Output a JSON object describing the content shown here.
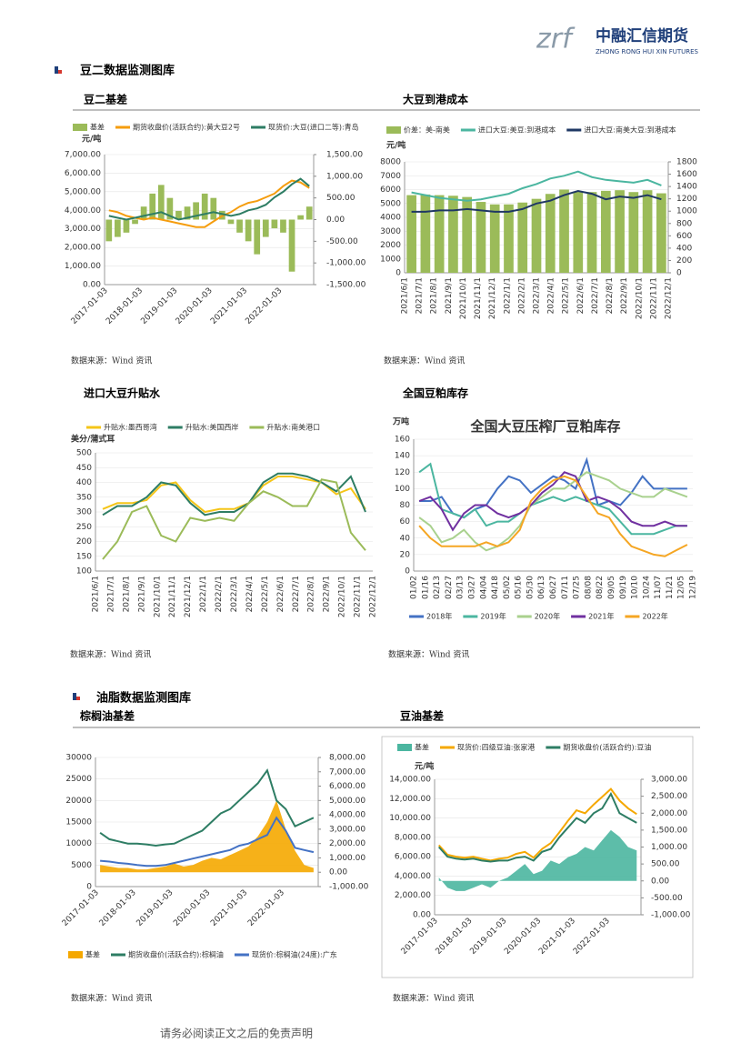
{
  "logo": {
    "mark": "zrf",
    "name": "中融汇信期货",
    "sub": "ZHONG RONG HUI XIN FUTURES"
  },
  "sections": [
    {
      "title": "豆二数据监测图库"
    },
    {
      "title": "油脂数据监测图库"
    }
  ],
  "charts": [
    {
      "type": "line",
      "caption": "豆二基差",
      "unit": "元/吨",
      "legend": "top",
      "source": "数据来源：Wind 资讯",
      "xlabels": [
        "2017-01-03",
        "2018-01-03",
        "2019-01-03",
        "2020-01-03",
        "2021-01-03",
        "2022-01-03"
      ],
      "ylim": [
        0,
        7000
      ],
      "yticks": [
        {
          "value": 0,
          "label": "0.00"
        },
        {
          "value": 1000,
          "label": "1,000.00"
        },
        {
          "value": 2000,
          "label": "2,000.00"
        },
        {
          "value": 3000,
          "label": "3,000.00"
        },
        {
          "value": 4000,
          "label": "4,000.00"
        },
        {
          "value": 5000,
          "label": "5,000.00"
        },
        {
          "value": 6000,
          "label": "6,000.00"
        },
        {
          "value": 7000,
          "label": "7,000.00"
        }
      ],
      "y2lim": [
        -1500,
        1500
      ],
      "y2ticks": [
        {
          "value": -1500,
          "label": "-1,500.00"
        },
        {
          "value": -1000,
          "label": "-1,000.00"
        },
        {
          "value": -500,
          "label": "-500.00"
        },
        {
          "value": 0,
          "label": "0.00"
        },
        {
          "value": 500,
          "label": "500.00"
        },
        {
          "value": 1000,
          "label": "1,000.00"
        },
        {
          "value": 1500,
          "label": "1,500.00"
        }
      ],
      "series": [
        {
          "name": "基差",
          "color": "#9bbb59",
          "kind": "bar",
          "axis": "y2",
          "values": [
            -500,
            -400,
            -300,
            -100,
            300,
            600,
            800,
            500,
            200,
            300,
            400,
            600,
            500,
            200,
            -100,
            -300,
            -500,
            -800,
            -400,
            -200,
            -300,
            -1200,
            100,
            300
          ]
        },
        {
          "name": "期货收盘价(活跃合约):黄大豆2号",
          "color": "#f59d0e",
          "kind": "line",
          "values": [
            4000,
            3900,
            3700,
            3600,
            3500,
            3600,
            3500,
            3400,
            3300,
            3200,
            3100,
            3100,
            3400,
            3700,
            3900,
            4200,
            4400,
            4500,
            4700,
            4900,
            5300,
            5600,
            5500,
            5200
          ]
        },
        {
          "name": "现货价:大豆(进口二等):青岛",
          "color": "#2e7d64",
          "kind": "line",
          "values": [
            3700,
            3600,
            3500,
            3600,
            3700,
            3800,
            3900,
            3700,
            3500,
            3600,
            3700,
            3800,
            3900,
            3800,
            3700,
            3800,
            4000,
            4100,
            4300,
            4700,
            5000,
            5400,
            5700,
            5300
          ]
        }
      ]
    },
    {
      "type": "line",
      "caption": "大豆到港成本",
      "unit": "元/吨",
      "legend": "top",
      "source": "数据来源：Wind 资讯",
      "xlabels": [
        "2021/6/1",
        "2021/7/1",
        "2021/8/1",
        "2021/9/1",
        "2021/10/1",
        "2021/11/1",
        "2021/12/1",
        "2022/1/1",
        "2022/2/1",
        "2022/3/1",
        "2022/4/1",
        "2022/5/1",
        "2022/6/1",
        "2022/7/1",
        "2022/8/1",
        "2022/9/1",
        "2022/10/1",
        "2022/11/1",
        "2022/12/1"
      ],
      "ylim": [
        0,
        8000
      ],
      "yticks": [
        0,
        1000,
        2000,
        3000,
        4000,
        5000,
        6000,
        7000,
        8000
      ],
      "y2lim": [
        0,
        1800
      ],
      "y2ticks": [
        0,
        200,
        400,
        600,
        800,
        1000,
        1200,
        1400,
        1600,
        1800
      ],
      "series": [
        {
          "name": "价差：美-南美",
          "color": "#9bbb59",
          "kind": "bar",
          "axis": "y2",
          "values": [
            1260,
            1270,
            1260,
            1250,
            1230,
            1150,
            1110,
            1110,
            1140,
            1200,
            1280,
            1350,
            1320,
            1310,
            1330,
            1340,
            1310,
            1340,
            1290
          ]
        },
        {
          "name": "进口大豆:美豆:到港成本",
          "color": "#4bb6a0",
          "kind": "line",
          "values": [
            5800,
            5600,
            5400,
            5300,
            5200,
            5300,
            5500,
            5700,
            6100,
            6400,
            6800,
            7000,
            7300,
            6900,
            6700,
            6600,
            6500,
            6700,
            6300
          ]
        },
        {
          "name": "进口大豆:南美大豆:到港成本",
          "color": "#1f3864",
          "kind": "line",
          "values": [
            4400,
            4400,
            4500,
            4500,
            4600,
            4500,
            4400,
            4400,
            4600,
            5000,
            5200,
            5600,
            5900,
            5700,
            5300,
            5500,
            5400,
            5600,
            5300
          ]
        }
      ]
    },
    {
      "type": "line",
      "caption": "进口大豆升贴水",
      "unit": "美分/蒲式耳",
      "legend": "top",
      "source": "数据来源：Wind 资讯",
      "xlabels": [
        "2021/6/1",
        "2021/7/1",
        "2021/8/1",
        "2021/9/1",
        "2021/10/1",
        "2021/11/1",
        "2021/12/1",
        "2022/1/1",
        "2022/2/1",
        "2022/3/1",
        "2022/4/1",
        "2022/5/1",
        "2022/6/1",
        "2022/7/1",
        "2022/8/1",
        "2022/9/1",
        "2022/10/1",
        "2022/11/1",
        "2022/12/1"
      ],
      "ylim": [
        100,
        500
      ],
      "yticks": [
        100,
        150,
        200,
        250,
        300,
        350,
        400,
        450,
        500
      ],
      "series": [
        {
          "name": "升贴水:墨西哥湾",
          "color": "#f5c518",
          "kind": "line",
          "values": [
            310,
            330,
            330,
            340,
            390,
            400,
            340,
            300,
            310,
            310,
            330,
            390,
            420,
            420,
            410,
            400,
            360,
            380,
            310
          ]
        },
        {
          "name": "升贴水:美国西岸",
          "color": "#2e7d64",
          "kind": "line",
          "values": [
            290,
            320,
            320,
            350,
            400,
            390,
            330,
            290,
            300,
            300,
            330,
            400,
            430,
            430,
            420,
            400,
            370,
            420,
            300
          ]
        },
        {
          "name": "升贴水:南美港口",
          "color": "#9bbb59",
          "kind": "line",
          "values": [
            140,
            200,
            300,
            320,
            220,
            200,
            280,
            270,
            280,
            270,
            330,
            370,
            350,
            320,
            320,
            410,
            400,
            230,
            170
          ]
        }
      ]
    },
    {
      "type": "line",
      "caption": "全国豆粕库存",
      "inner_title": "全国大豆压榨厂豆粕库存",
      "unit": "万吨",
      "legend": "bottom",
      "source": "数据来源：Wind 资讯",
      "xlabels": [
        "01/02",
        "01/16",
        "02/13",
        "02/27",
        "03/13",
        "03/27",
        "04/04",
        "04/18",
        "05/02",
        "05/16",
        "05/30",
        "06/13",
        "06/27",
        "07/11",
        "07/25",
        "08/08",
        "08/22",
        "09/05",
        "09/19",
        "10/10",
        "10/24",
        "11/07",
        "11/21",
        "12/05",
        "12/19"
      ],
      "ylim": [
        0,
        160
      ],
      "yticks": [
        0,
        20,
        40,
        60,
        80,
        100,
        120,
        140,
        160
      ],
      "series": [
        {
          "name": "2018年",
          "color": "#4472c4",
          "kind": "line",
          "values": [
            85,
            85,
            90,
            70,
            65,
            75,
            80,
            100,
            115,
            110,
            95,
            105,
            115,
            110,
            100,
            135,
            80,
            85,
            80,
            95,
            115,
            100,
            100,
            100,
            100
          ]
        },
        {
          "name": "2019年",
          "color": "#4bb6a0",
          "kind": "line",
          "values": [
            120,
            130,
            75,
            70,
            65,
            75,
            55,
            60,
            60,
            70,
            80,
            85,
            90,
            85,
            90,
            85,
            80,
            75,
            60,
            45,
            45,
            45,
            50,
            55,
            55
          ]
        },
        {
          "name": "2020年",
          "color": "#a9d18e",
          "kind": "line",
          "values": [
            65,
            55,
            35,
            40,
            50,
            35,
            25,
            30,
            40,
            55,
            80,
            90,
            100,
            100,
            110,
            120,
            115,
            110,
            100,
            95,
            90,
            90,
            100,
            95,
            90
          ]
        },
        {
          "name": "2021年",
          "color": "#7030a0",
          "kind": "line",
          "values": [
            85,
            90,
            75,
            50,
            70,
            80,
            80,
            70,
            65,
            70,
            80,
            95,
            105,
            120,
            115,
            85,
            90,
            85,
            75,
            60,
            55,
            55,
            60,
            55,
            55
          ]
        },
        {
          "name": "2022年",
          "color": "#f5a623",
          "kind": "line",
          "values": [
            55,
            40,
            30,
            30,
            30,
            30,
            35,
            30,
            35,
            50,
            85,
            100,
            110,
            115,
            110,
            90,
            70,
            65,
            45,
            30,
            25,
            20,
            18,
            25,
            32
          ]
        }
      ]
    },
    {
      "type": "line",
      "caption": "棕榈油基差",
      "legend": "bottom",
      "source": "数据来源：Wind 资讯",
      "xlabels": [
        "2017-01-03",
        "2018-01-03",
        "2019-01-03",
        "2020-01-03",
        "2021-01-03",
        "2022-01-03"
      ],
      "ylim": [
        0,
        30000
      ],
      "yticks": [
        0,
        5000,
        10000,
        15000,
        20000,
        25000,
        30000
      ],
      "y2lim": [
        -1000,
        8000
      ],
      "y2ticks": [
        {
          "value": -1000,
          "label": "-1,000.00"
        },
        {
          "value": 0,
          "label": "0.00"
        },
        {
          "value": 1000,
          "label": "1,000.00"
        },
        {
          "value": 2000,
          "label": "2,000.00"
        },
        {
          "value": 3000,
          "label": "3,000.00"
        },
        {
          "value": 4000,
          "label": "4,000.00"
        },
        {
          "value": 5000,
          "label": "5,000.00"
        },
        {
          "value": 6000,
          "label": "6,000.00"
        },
        {
          "value": 7000,
          "label": "7,000.00"
        },
        {
          "value": 8000,
          "label": "8,000.00"
        }
      ],
      "series": [
        {
          "name": "基差",
          "color": "#f5a800",
          "kind": "area",
          "axis": "y2",
          "values": [
            500,
            400,
            300,
            300,
            200,
            200,
            300,
            400,
            600,
            400,
            500,
            800,
            1000,
            900,
            1200,
            1500,
            1800,
            2500,
            3500,
            5000,
            3000,
            1500,
            500,
            300
          ]
        },
        {
          "name": "期货收盘价(活跃合约):棕榈油",
          "color": "#2e7d64",
          "kind": "line",
          "values": [
            12500,
            11000,
            10500,
            10000,
            10000,
            9800,
            9500,
            9800,
            10000,
            11000,
            12000,
            13000,
            15000,
            17000,
            18000,
            20000,
            22000,
            24000,
            27000,
            20000,
            18000,
            14000,
            15000,
            16000
          ]
        },
        {
          "name": "现货价:棕榈油(24度):广东",
          "color": "#4472c4",
          "kind": "line",
          "values": [
            6000,
            5800,
            5500,
            5300,
            5000,
            4800,
            4800,
            5000,
            5500,
            6000,
            6500,
            7000,
            7500,
            8000,
            8500,
            9500,
            10000,
            11000,
            12000,
            16000,
            13000,
            9000,
            8500,
            8000
          ]
        }
      ]
    },
    {
      "type": "line",
      "caption": "豆油基差",
      "unit": "元/吨",
      "legend": "top",
      "source": "数据来源：Wind 资讯",
      "xlabels": [
        "2017-01-03",
        "2018-01-03",
        "2019-01-03",
        "2020-01-03",
        "2021-01-03",
        "2022-01-03"
      ],
      "ylim": [
        0,
        14000
      ],
      "yticks": [
        {
          "value": 0,
          "label": "0.00"
        },
        {
          "value": 2000,
          "label": "2,000.00"
        },
        {
          "value": 4000,
          "label": "4,000.00"
        },
        {
          "value": 6000,
          "label": "6,000.00"
        },
        {
          "value": 8000,
          "label": "8,000.00"
        },
        {
          "value": 10000,
          "label": "10,000.00"
        },
        {
          "value": 12000,
          "label": "12,000.00"
        },
        {
          "value": 14000,
          "label": "14,000.00"
        }
      ],
      "y2lim": [
        -1000,
        3000
      ],
      "y2ticks": [
        {
          "value": -1000,
          "label": "-1,000.00"
        },
        {
          "value": -500,
          "label": "-500.00"
        },
        {
          "value": 0,
          "label": "0.00"
        },
        {
          "value": 500,
          "label": "500.00"
        },
        {
          "value": 1000,
          "label": "1,000.00"
        },
        {
          "value": 1500,
          "label": "1,500.00"
        },
        {
          "value": 2000,
          "label": "2,000.00"
        },
        {
          "value": 2500,
          "label": "2,500.00"
        },
        {
          "value": 3000,
          "label": "3,000.00"
        }
      ],
      "series": [
        {
          "name": "基差",
          "color": "#4bb6a0",
          "kind": "area",
          "axis": "y2",
          "values": [
            100,
            -200,
            -300,
            -300,
            -200,
            -100,
            -200,
            0,
            100,
            300,
            500,
            200,
            300,
            600,
            500,
            700,
            800,
            1000,
            900,
            1200,
            1500,
            1300,
            1000,
            900
          ]
        },
        {
          "name": "现货价:四级豆油:张家港",
          "color": "#f5a800",
          "kind": "line",
          "values": [
            7200,
            6200,
            6000,
            5900,
            6000,
            5800,
            5600,
            5800,
            5900,
            6300,
            6500,
            5900,
            6800,
            7400,
            8500,
            9700,
            10800,
            10500,
            11400,
            12200,
            13000,
            11800,
            11000,
            10400
          ]
        },
        {
          "name": "期货收盘价(活跃合约):豆油",
          "color": "#2e7d64",
          "kind": "line",
          "values": [
            7000,
            6000,
            5800,
            5700,
            5800,
            5600,
            5500,
            5600,
            5600,
            5900,
            6000,
            5600,
            6500,
            6800,
            8000,
            9000,
            10000,
            9500,
            10500,
            11000,
            12500,
            10500,
            10000,
            9500
          ]
        }
      ]
    }
  ],
  "footer": "请务必阅读正文之后的免责声明"
}
